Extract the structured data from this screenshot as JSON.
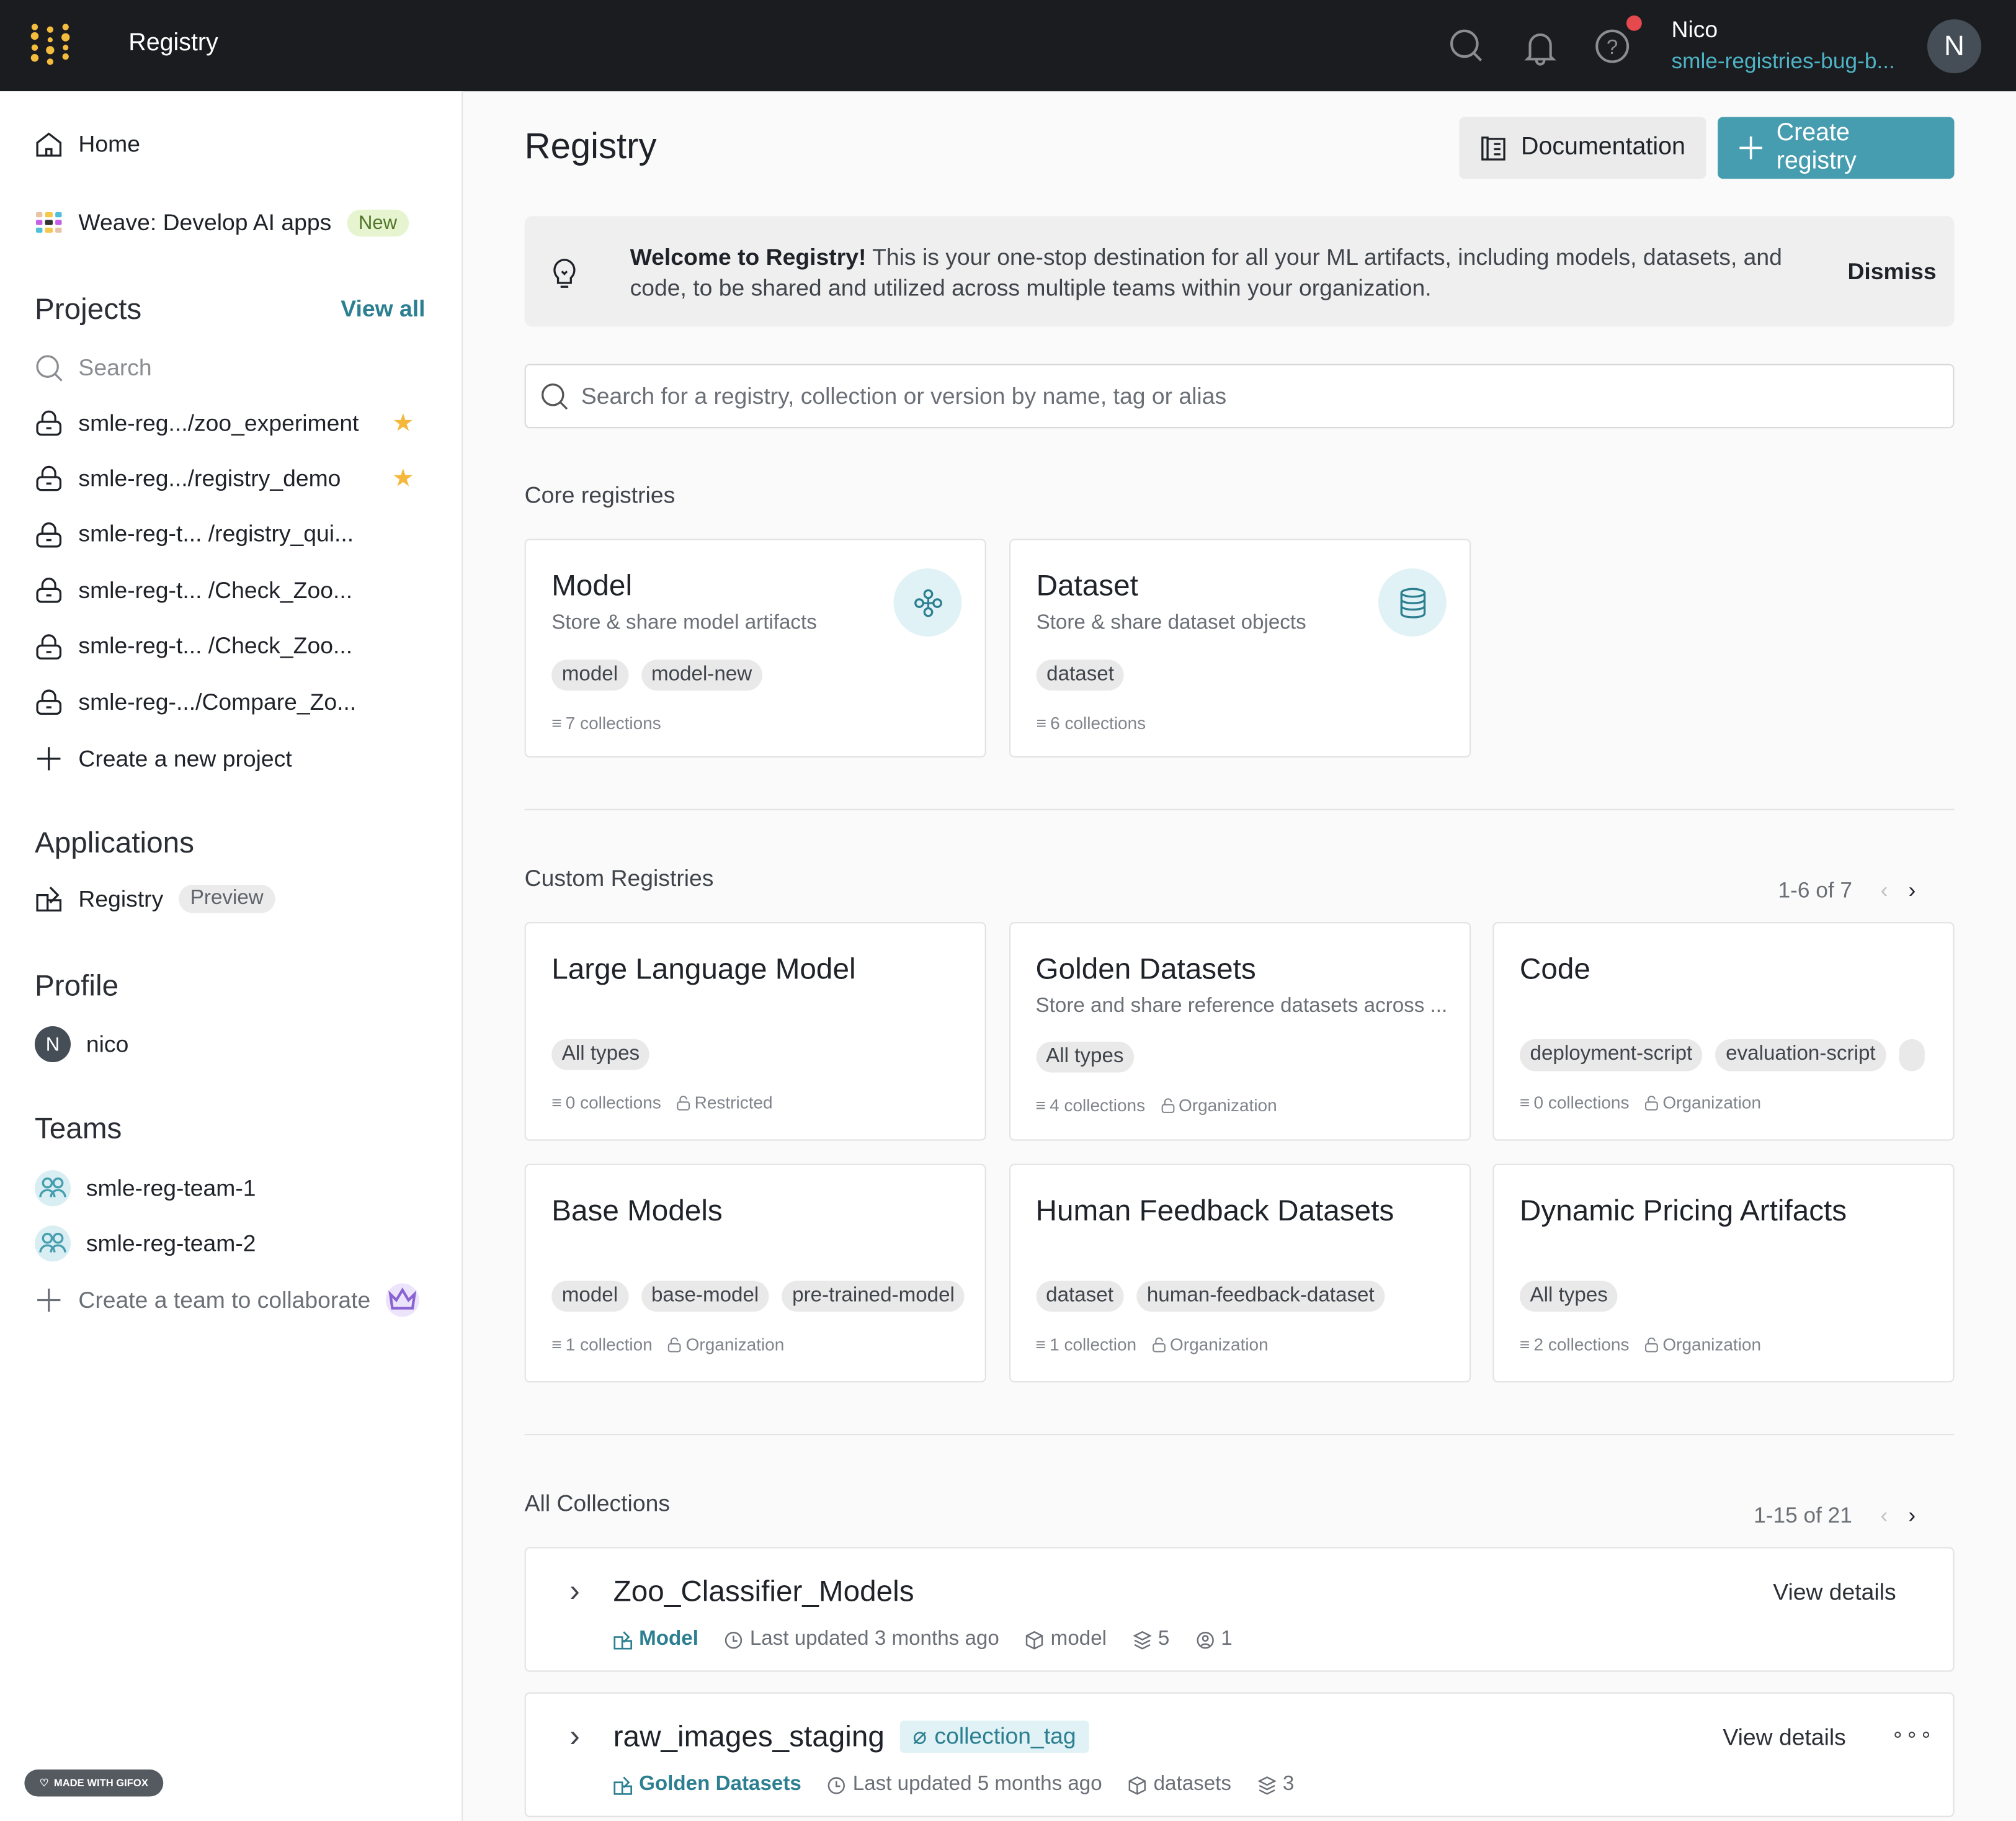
{
  "topbar": {
    "title": "Registry",
    "user_name": "Nico",
    "org": "smle-registries-bug-b...",
    "avatar_letter": "N",
    "notification_color": "#e5484d"
  },
  "sidebar": {
    "home": "Home",
    "weave": "Weave: Develop AI apps",
    "weave_badge": "New",
    "projects_heading": "Projects",
    "view_all": "View all",
    "search_placeholder": "Search",
    "projects": [
      {
        "name": "smle-reg.../zoo_experiment",
        "starred": true
      },
      {
        "name": "smle-reg.../registry_demo",
        "starred": true
      },
      {
        "name": "smle-reg-t... /registry_qui...",
        "starred": false
      },
      {
        "name": "smle-reg-t... /Check_Zoo...",
        "starred": false
      },
      {
        "name": "smle-reg-t... /Check_Zoo...",
        "starred": false
      },
      {
        "name": "smle-reg-.../Compare_Zo...",
        "starred": false
      }
    ],
    "create_project": "Create a new project",
    "applications_heading": "Applications",
    "registry_app": "Registry",
    "registry_badge": "Preview",
    "profile_heading": "Profile",
    "profile_name": "nico",
    "profile_letter": "N",
    "teams_heading": "Teams",
    "teams": [
      "smle-reg-team-1",
      "smle-reg-team-2"
    ],
    "create_team": "Create a team to collaborate",
    "gifox": "MADE WITH GIFOX"
  },
  "main": {
    "title": "Registry",
    "documentation": "Documentation",
    "create_registry": "Create registry",
    "banner": {
      "bold": "Welcome to Registry!",
      "text": " This is your one-stop destination for all your ML artifacts, including models, datasets, and code, to be shared and utilized across multiple teams within your organization.",
      "dismiss": "Dismiss"
    },
    "search_placeholder": "Search for a registry, collection or version by name, tag or alias",
    "core_heading": "Core registries",
    "core": [
      {
        "title": "Model",
        "desc": "Store & share model artifacts",
        "tags": [
          "model",
          "model-new"
        ],
        "collections": "7 collections",
        "icon": "model-icon"
      },
      {
        "title": "Dataset",
        "desc": "Store & share dataset objects",
        "tags": [
          "dataset"
        ],
        "collections": "6 collections",
        "icon": "database-icon"
      }
    ],
    "custom_heading": "Custom Registries",
    "custom_pager": "1-6 of 7",
    "custom": [
      {
        "title": "Large Language Model",
        "desc": "",
        "tags": [
          "All types"
        ],
        "collections": "0 collections",
        "visibility": "Restricted"
      },
      {
        "title": "Golden Datasets",
        "desc": "Store and share reference datasets across ...",
        "tags": [
          "All types"
        ],
        "collections": "4 collections",
        "visibility": "Organization"
      },
      {
        "title": "Code",
        "desc": "",
        "tags": [
          "deployment-script",
          "evaluation-script",
          ""
        ],
        "collections": "0 collections",
        "visibility": "Organization"
      },
      {
        "title": "Base Models",
        "desc": "",
        "tags": [
          "model",
          "base-model",
          "pre-trained-model"
        ],
        "collections": "1 collection",
        "visibility": "Organization"
      },
      {
        "title": "Human Feedback Datasets",
        "desc": "",
        "tags": [
          "dataset",
          "human-feedback-dataset"
        ],
        "collections": "1 collection",
        "visibility": "Organization"
      },
      {
        "title": "Dynamic Pricing Artifacts",
        "desc": "",
        "tags": [
          "All types"
        ],
        "collections": "2 collections",
        "visibility": "Organization"
      }
    ],
    "collections_heading": "All Collections",
    "collections_pager": "1-15 of 21",
    "collections": [
      {
        "name": "Zoo_Classifier_Models",
        "tag": "",
        "registry": "Model",
        "updated": "Last updated 3 months ago",
        "type": "model",
        "versions": "5",
        "users": "1",
        "view": "View details"
      },
      {
        "name": "raw_images_staging",
        "tag": "collection_tag",
        "registry": "Golden Datasets",
        "updated": "Last updated 5 months ago",
        "type": "datasets",
        "versions": "3",
        "users": "",
        "view": "View details"
      }
    ]
  },
  "colors": {
    "accent": "#479db0",
    "teal_text": "#2c7f91",
    "topbar": "#1a1c1f",
    "star": "#f5b83d"
  }
}
